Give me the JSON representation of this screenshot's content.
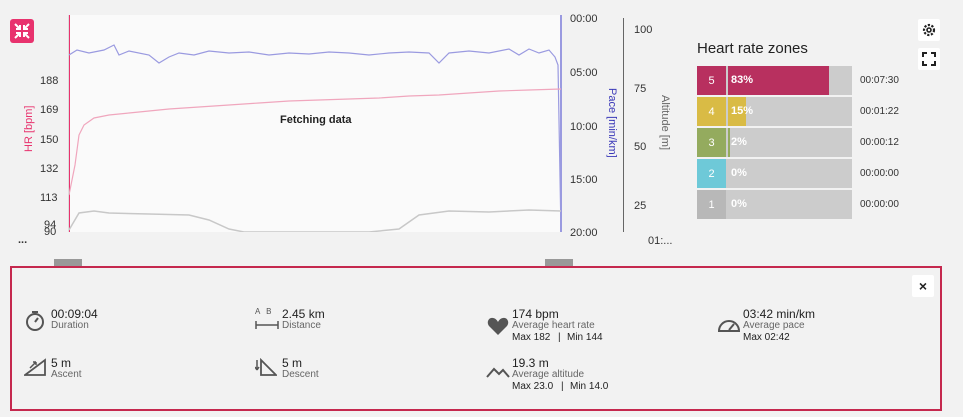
{
  "chart": {
    "hr_axis_label": "HR [bpm]",
    "hr_ticks": [
      "188",
      "169",
      "150",
      "132",
      "113",
      "94",
      "90"
    ],
    "pace_axis_label": "Pace [min/km]",
    "pace_ticks": [
      "00:00",
      "05:00",
      "10:00",
      "15:00",
      "20:00"
    ],
    "altitude_axis_label": "Altitude [m]",
    "altitude_ticks": [
      "100",
      "75",
      "50",
      "25"
    ],
    "x_start": "...",
    "x_end": "01:...",
    "overlay_text": "Fetching data",
    "colors": {
      "hr": "#f0a6bd",
      "pace": "#9a9ae0",
      "altitude": "#c8c8c8",
      "accent": "#e8336e"
    }
  },
  "zones": {
    "title": "Heart rate zones",
    "items": [
      {
        "num": "5",
        "pct_label": "83%",
        "pct": 83,
        "time": "00:07:30",
        "color": "#b8305f"
      },
      {
        "num": "4",
        "pct_label": "15%",
        "pct": 15,
        "time": "00:01:22",
        "color": "#d9bb45"
      },
      {
        "num": "3",
        "pct_label": "2%",
        "pct": 2,
        "time": "00:00:12",
        "color": "#94ab5e"
      },
      {
        "num": "2",
        "pct_label": "0%",
        "pct": 0,
        "time": "00:00:00",
        "color": "#6ec9d8"
      },
      {
        "num": "1",
        "pct_label": "0%",
        "pct": 0,
        "time": "00:00:00",
        "color": "#b8b8b8"
      }
    ]
  },
  "summary": {
    "duration": {
      "value": "00:09:04",
      "label": "Duration"
    },
    "distance": {
      "value": "2.45 km",
      "label": "Distance",
      "icon_text": "A B"
    },
    "heart_rate": {
      "value": "174 bpm",
      "label": "Average heart rate",
      "max": "Max 182",
      "min": "Min 144",
      "sep": "|"
    },
    "pace": {
      "value": "03:42 min/km",
      "label": "Average pace",
      "max": "Max 02:42"
    },
    "ascent": {
      "value": "5 m",
      "label": "Ascent"
    },
    "descent": {
      "value": "5 m",
      "label": "Descent"
    },
    "altitude": {
      "value": "19.3 m",
      "label": "Average altitude",
      "max": "Max 23.0",
      "min": "Min 14.0",
      "sep": "|"
    },
    "close": "×"
  }
}
